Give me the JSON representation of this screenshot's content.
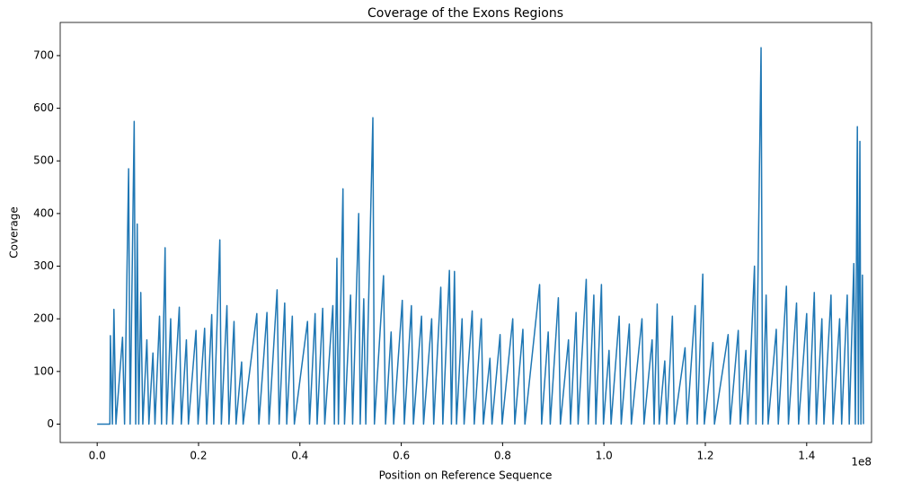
{
  "chart_data": {
    "type": "line",
    "title": "Coverage of the Exons Regions",
    "xlabel": "Position on Reference Sequence",
    "ylabel": "Coverage",
    "x_offset_text": "1e8",
    "color": "#1f77b4",
    "xlim": [
      -7300000.0,
      152800000.0
    ],
    "ylim": [
      -35,
      763
    ],
    "xticks": [
      {
        "value": 0,
        "label": "0.0"
      },
      {
        "value": 20000000.0,
        "label": "0.2"
      },
      {
        "value": 40000000.0,
        "label": "0.4"
      },
      {
        "value": 60000000.0,
        "label": "0.6"
      },
      {
        "value": 80000000.0,
        "label": "0.8"
      },
      {
        "value": 100000000.0,
        "label": "1.0"
      },
      {
        "value": 120000000.0,
        "label": "1.2"
      },
      {
        "value": 140000000.0,
        "label": "1.4"
      }
    ],
    "yticks": [
      0,
      100,
      200,
      300,
      400,
      500,
      600,
      700
    ],
    "x": [
      0,
      2500000.0,
      2600000.0,
      3000000.0,
      3300000.0,
      3700000.0,
      5000000.0,
      5400000.0,
      6200000.0,
      6500000.0,
      7300000.0,
      7600000.0,
      7900000.0,
      8200000.0,
      8600000.0,
      9000000.0,
      9800000.0,
      10200000.0,
      11000000.0,
      11400000.0,
      12300000.0,
      12700000.0,
      13400000.0,
      13700000.0,
      14500000.0,
      14900000.0,
      16200000.0,
      16600000.0,
      17600000.0,
      18000000.0,
      19500000.0,
      19900000.0,
      21200000.0,
      21600000.0,
      22600000.0,
      23000000.0,
      24200000.0,
      24500000.0,
      25600000.0,
      26000000.0,
      27000000.0,
      27400000.0,
      28500000.0,
      28800000.0,
      31500000.0,
      31900000.0,
      33500000.0,
      33900000.0,
      35500000.0,
      35900000.0,
      37000000.0,
      37400000.0,
      38500000.0,
      38900000.0,
      41500000.0,
      41900000.0,
      43000000.0,
      43400000.0,
      44500000.0,
      44900000.0,
      46500000.0,
      46800000.0,
      47300000.0,
      47600000.0,
      48500000.0,
      48800000.0,
      50000000.0,
      50400000.0,
      51600000.0,
      51900000.0,
      52600000.0,
      53000000.0,
      54400000.0,
      54700000.0,
      56500000.0,
      56900000.0,
      58000000.0,
      58500000.0,
      60200000.0,
      60600000.0,
      62000000.0,
      62400000.0,
      64000000.0,
      64400000.0,
      66000000.0,
      66400000.0,
      67800000.0,
      68200000.0,
      69500000.0,
      69900000.0,
      70500000.0,
      70900000.0,
      72000000.0,
      72400000.0,
      74000000.0,
      74400000.0,
      75800000.0,
      76200000.0,
      77500000.0,
      77900000.0,
      79500000.0,
      79900000.0,
      82000000.0,
      82400000.0,
      84000000.0,
      84400000.0,
      87300000.0,
      87700000.0,
      89000000.0,
      89400000.0,
      91000000.0,
      91400000.0,
      93000000.0,
      93400000.0,
      94500000.0,
      94900000.0,
      96500000.0,
      96900000.0,
      98000000.0,
      98400000.0,
      99500000.0,
      99900000.0,
      101000000.0,
      101400000.0,
      103000000.0,
      103400000.0,
      105000000.0,
      105400000.0,
      107500000.0,
      107900000.0,
      109500000.0,
      109900000.0,
      110500000.0,
      110900000.0,
      112000000.0,
      112400000.0,
      113500000.0,
      113900000.0,
      116000000.0,
      116400000.0,
      118000000.0,
      118400000.0,
      119500000.0,
      119800000.0,
      121500000.0,
      121800000.0,
      124500000.0,
      124900000.0,
      126500000.0,
      126900000.0,
      128000000.0,
      128400000.0,
      129700000.0,
      130000000.0,
      131000000.0,
      131300000.0,
      132000000.0,
      132400000.0,
      134000000.0,
      134400000.0,
      136000000.0,
      136400000.0,
      138000000.0,
      138400000.0,
      140000000.0,
      140400000.0,
      141500000.0,
      141900000.0,
      143000000.0,
      143400000.0,
      144800000.0,
      145200000.0,
      146500000.0,
      146900000.0,
      148000000.0,
      148400000.0,
      149300000.0,
      149600000.0,
      150000000.0,
      150200000.0,
      150500000.0,
      150700000.0,
      151000000.0,
      151200000.0
    ],
    "values": [
      0,
      0,
      168,
      0,
      218,
      0,
      165,
      0,
      485,
      0,
      575,
      0,
      380,
      0,
      250,
      0,
      160,
      0,
      135,
      0,
      205,
      0,
      335,
      0,
      200,
      0,
      222,
      0,
      160,
      0,
      178,
      0,
      182,
      0,
      208,
      0,
      350,
      0,
      225,
      0,
      195,
      0,
      118,
      0,
      210,
      0,
      212,
      0,
      255,
      0,
      230,
      0,
      205,
      0,
      195,
      0,
      210,
      0,
      220,
      0,
      225,
      0,
      315,
      0,
      447,
      0,
      245,
      0,
      400,
      0,
      238,
      0,
      582,
      0,
      282,
      0,
      175,
      0,
      235,
      0,
      225,
      0,
      205,
      0,
      200,
      0,
      260,
      0,
      292,
      0,
      290,
      0,
      200,
      0,
      215,
      0,
      200,
      0,
      125,
      0,
      170,
      0,
      200,
      0,
      180,
      0,
      265,
      0,
      175,
      0,
      240,
      0,
      160,
      0,
      212,
      0,
      275,
      0,
      245,
      0,
      265,
      0,
      140,
      0,
      205,
      0,
      190,
      0,
      200,
      0,
      160,
      0,
      228,
      0,
      120,
      0,
      205,
      0,
      145,
      0,
      225,
      0,
      285,
      0,
      155,
      0,
      170,
      0,
      178,
      0,
      140,
      0,
      300,
      0,
      715,
      0,
      245,
      0,
      180,
      0,
      262,
      0,
      230,
      0,
      210,
      0,
      250,
      0,
      200,
      0,
      245,
      0,
      200,
      0,
      245,
      0,
      305,
      0,
      565,
      0,
      537,
      0,
      283,
      0
    ]
  }
}
